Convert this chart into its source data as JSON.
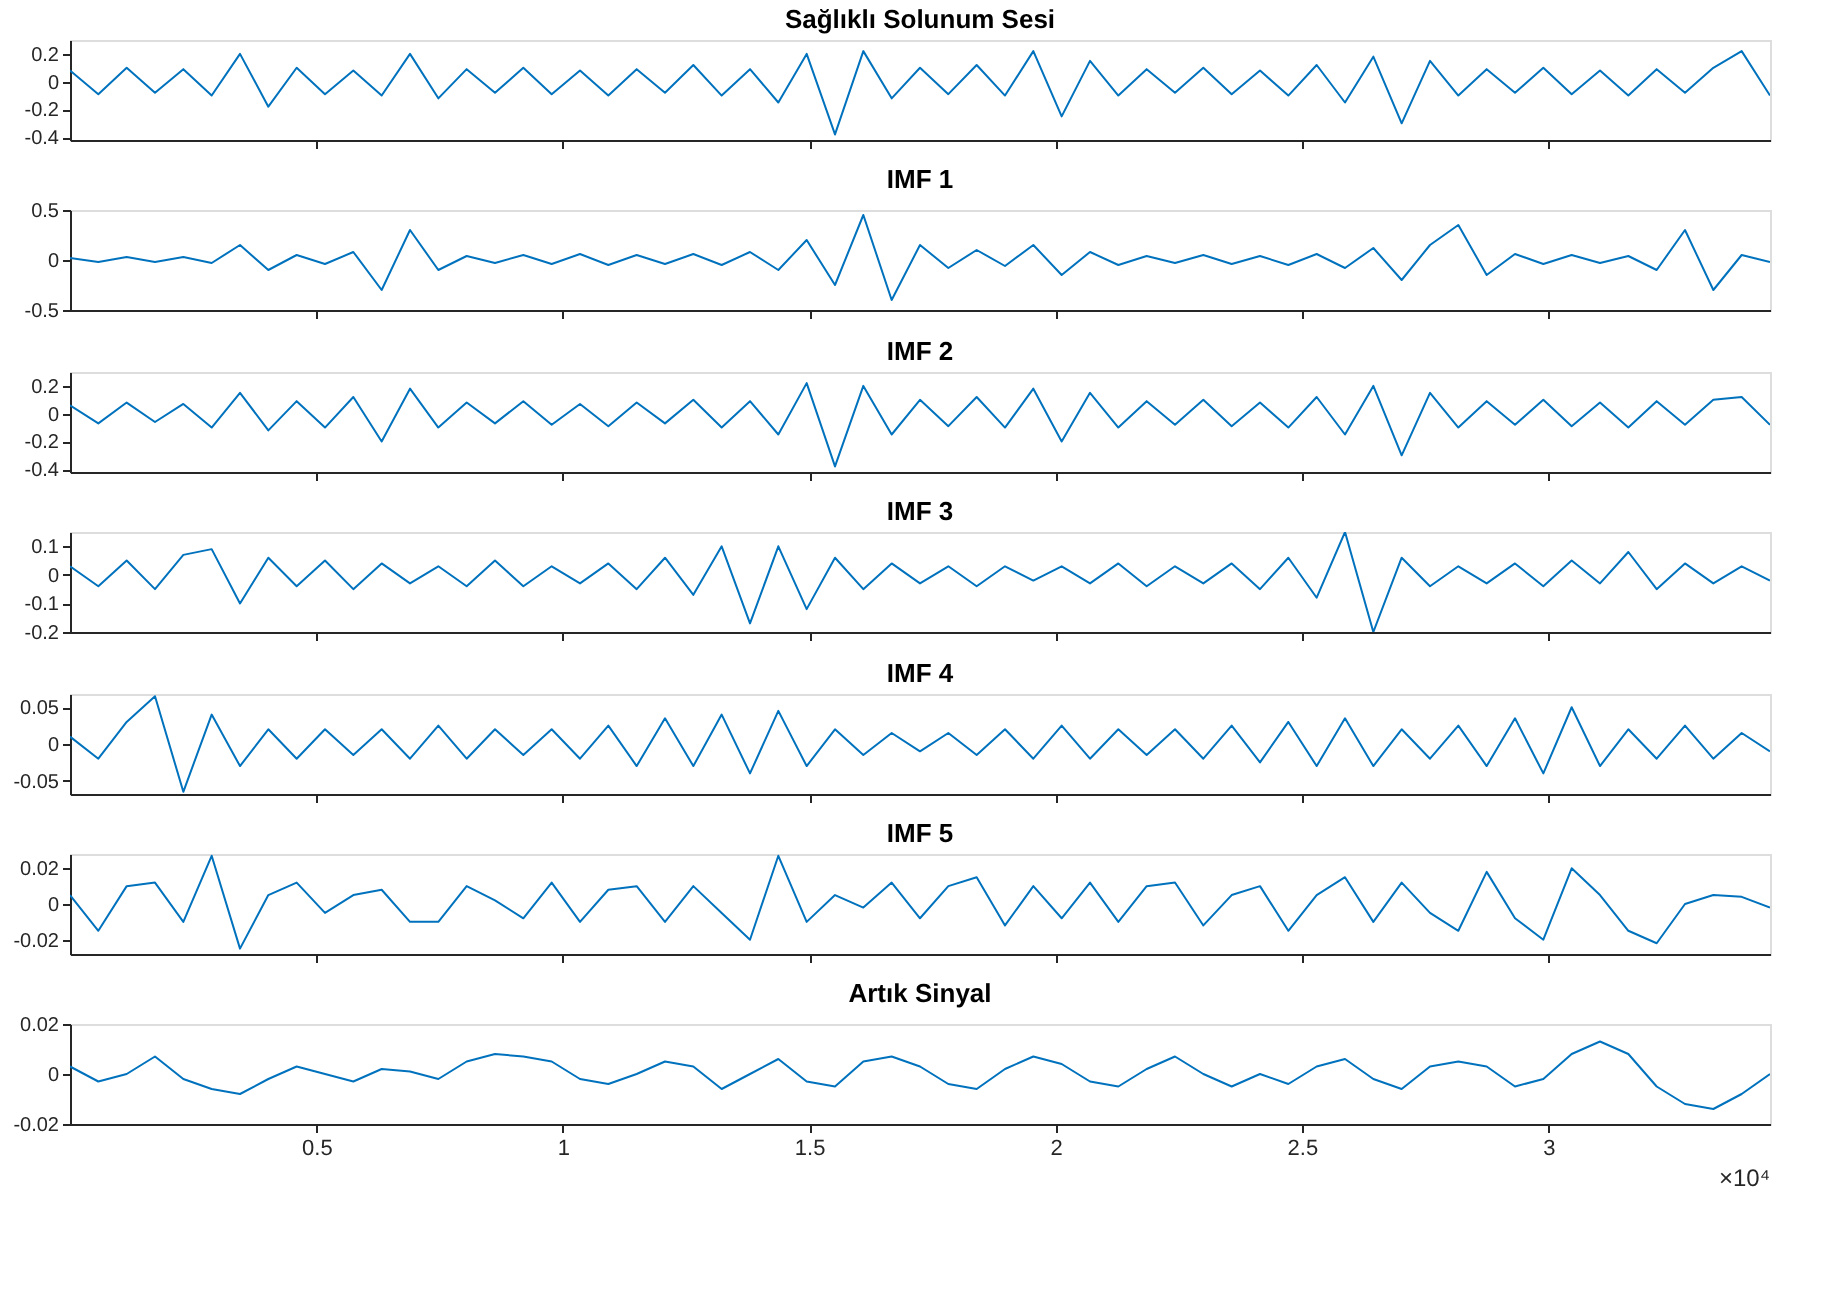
{
  "chart_data": [
    {
      "type": "line",
      "title": "Sağlıklı Solunum Sesi",
      "color": "#0072bd",
      "xlim": [
        0,
        3.45
      ],
      "ylim": [
        -0.42,
        0.3
      ],
      "yticks": [
        0.2,
        0,
        -0.2,
        -0.4
      ],
      "tick_labels": "y",
      "grid": false,
      "xticks": [
        0.5,
        1,
        1.5,
        2,
        2.5,
        3
      ],
      "x": [
        0,
        0.0575,
        0.115,
        0.1725,
        0.23,
        0.2875,
        0.345,
        0.4025,
        0.46,
        0.5175,
        0.575,
        0.6325,
        0.69,
        0.7475,
        0.805,
        0.8625,
        0.92,
        0.9775,
        1.035,
        1.0925,
        1.15,
        1.2075,
        1.265,
        1.3225,
        1.38,
        1.4375,
        1.495,
        1.5525,
        1.61,
        1.6675,
        1.725,
        1.7825,
        1.84,
        1.8975,
        1.955,
        2.0125,
        2.07,
        2.1275,
        2.185,
        2.2425,
        2.3,
        2.3575,
        2.415,
        2.4725,
        2.53,
        2.5875,
        2.645,
        2.7025,
        2.76,
        2.8175,
        2.875,
        2.9325,
        2.99,
        3.0475,
        3.105,
        3.1625,
        3.22,
        3.2775,
        3.335,
        3.3925,
        3.45
      ],
      "values": [
        0.08,
        -0.09,
        0.1,
        -0.08,
        0.09,
        -0.1,
        0.2,
        -0.18,
        0.1,
        -0.09,
        0.08,
        -0.1,
        0.2,
        -0.12,
        0.09,
        -0.08,
        0.1,
        -0.09,
        0.08,
        -0.1,
        0.09,
        -0.08,
        0.12,
        -0.1,
        0.09,
        -0.15,
        0.2,
        -0.38,
        0.22,
        -0.12,
        0.1,
        -0.09,
        0.12,
        -0.1,
        0.22,
        -0.25,
        0.15,
        -0.1,
        0.09,
        -0.08,
        0.1,
        -0.09,
        0.08,
        -0.1,
        0.12,
        -0.15,
        0.18,
        -0.3,
        0.15,
        -0.1,
        0.09,
        -0.08,
        0.1,
        -0.09,
        0.08,
        -0.1,
        0.09,
        -0.08,
        0.1,
        0.22,
        -0.1
      ]
    },
    {
      "type": "line",
      "title": "IMF 1",
      "color": "#0072bd",
      "xlim": [
        0,
        3.45
      ],
      "ylim": [
        -0.5,
        0.5
      ],
      "yticks": [
        0.5,
        0,
        -0.5
      ],
      "tick_labels": "y",
      "grid": false,
      "xticks": [
        0.5,
        1,
        1.5,
        2,
        2.5,
        3
      ],
      "x": [
        0,
        0.0575,
        0.115,
        0.1725,
        0.23,
        0.2875,
        0.345,
        0.4025,
        0.46,
        0.5175,
        0.575,
        0.6325,
        0.69,
        0.7475,
        0.805,
        0.8625,
        0.92,
        0.9775,
        1.035,
        1.0925,
        1.15,
        1.2075,
        1.265,
        1.3225,
        1.38,
        1.4375,
        1.495,
        1.5525,
        1.61,
        1.6675,
        1.725,
        1.7825,
        1.84,
        1.8975,
        1.955,
        2.0125,
        2.07,
        2.1275,
        2.185,
        2.2425,
        2.3,
        2.3575,
        2.415,
        2.4725,
        2.53,
        2.5875,
        2.645,
        2.7025,
        2.76,
        2.8175,
        2.875,
        2.9325,
        2.99,
        3.0475,
        3.105,
        3.1625,
        3.22,
        3.2775,
        3.335,
        3.3925,
        3.45
      ],
      "values": [
        0.02,
        -0.02,
        0.03,
        -0.02,
        0.03,
        -0.03,
        0.15,
        -0.1,
        0.05,
        -0.04,
        0.08,
        -0.3,
        0.3,
        -0.1,
        0.04,
        -0.03,
        0.05,
        -0.04,
        0.06,
        -0.05,
        0.05,
        -0.04,
        0.06,
        -0.05,
        0.08,
        -0.1,
        0.2,
        -0.25,
        0.45,
        -0.4,
        0.15,
        -0.08,
        0.1,
        -0.06,
        0.15,
        -0.15,
        0.08,
        -0.05,
        0.04,
        -0.03,
        0.05,
        -0.04,
        0.04,
        -0.05,
        0.06,
        -0.08,
        0.12,
        -0.2,
        0.15,
        0.35,
        -0.15,
        0.06,
        -0.04,
        0.05,
        -0.03,
        0.04,
        -0.1,
        0.3,
        -0.3,
        0.05,
        -0.02
      ]
    },
    {
      "type": "line",
      "title": "IMF 2",
      "color": "#0072bd",
      "xlim": [
        0,
        3.45
      ],
      "ylim": [
        -0.42,
        0.3
      ],
      "yticks": [
        0.2,
        0,
        -0.2,
        -0.4
      ],
      "tick_labels": "y",
      "grid": false,
      "xticks": [
        0.5,
        1,
        1.5,
        2,
        2.5,
        3
      ],
      "x": [
        0,
        0.0575,
        0.115,
        0.1725,
        0.23,
        0.2875,
        0.345,
        0.4025,
        0.46,
        0.5175,
        0.575,
        0.6325,
        0.69,
        0.7475,
        0.805,
        0.8625,
        0.92,
        0.9775,
        1.035,
        1.0925,
        1.15,
        1.2075,
        1.265,
        1.3225,
        1.38,
        1.4375,
        1.495,
        1.5525,
        1.61,
        1.6675,
        1.725,
        1.7825,
        1.84,
        1.8975,
        1.955,
        2.0125,
        2.07,
        2.1275,
        2.185,
        2.2425,
        2.3,
        2.3575,
        2.415,
        2.4725,
        2.53,
        2.5875,
        2.645,
        2.7025,
        2.76,
        2.8175,
        2.875,
        2.9325,
        2.99,
        3.0475,
        3.105,
        3.1625,
        3.22,
        3.2775,
        3.335,
        3.3925,
        3.45
      ],
      "values": [
        0.06,
        -0.07,
        0.08,
        -0.06,
        0.07,
        -0.1,
        0.15,
        -0.12,
        0.09,
        -0.1,
        0.12,
        -0.2,
        0.18,
        -0.1,
        0.08,
        -0.07,
        0.09,
        -0.08,
        0.07,
        -0.09,
        0.08,
        -0.07,
        0.1,
        -0.1,
        0.09,
        -0.15,
        0.22,
        -0.38,
        0.2,
        -0.15,
        0.1,
        -0.09,
        0.12,
        -0.1,
        0.18,
        -0.2,
        0.15,
        -0.1,
        0.09,
        -0.08,
        0.1,
        -0.09,
        0.08,
        -0.1,
        0.12,
        -0.15,
        0.2,
        -0.3,
        0.15,
        -0.1,
        0.09,
        -0.08,
        0.1,
        -0.09,
        0.08,
        -0.1,
        0.09,
        -0.08,
        0.1,
        0.12,
        -0.08
      ]
    },
    {
      "type": "line",
      "title": "IMF 3",
      "color": "#0072bd",
      "xlim": [
        0,
        3.45
      ],
      "ylim": [
        -0.2,
        0.15
      ],
      "yticks": [
        0.1,
        0,
        -0.1,
        -0.2
      ],
      "tick_labels": "y",
      "grid": false,
      "xticks": [
        0.5,
        1,
        1.5,
        2,
        2.5,
        3
      ],
      "x": [
        0,
        0.0575,
        0.115,
        0.1725,
        0.23,
        0.2875,
        0.345,
        0.4025,
        0.46,
        0.5175,
        0.575,
        0.6325,
        0.69,
        0.7475,
        0.805,
        0.8625,
        0.92,
        0.9775,
        1.035,
        1.0925,
        1.15,
        1.2075,
        1.265,
        1.3225,
        1.38,
        1.4375,
        1.495,
        1.5525,
        1.61,
        1.6675,
        1.725,
        1.7825,
        1.84,
        1.8975,
        1.955,
        2.0125,
        2.07,
        2.1275,
        2.185,
        2.2425,
        2.3,
        2.3575,
        2.415,
        2.4725,
        2.53,
        2.5875,
        2.645,
        2.7025,
        2.76,
        2.8175,
        2.875,
        2.9325,
        2.99,
        3.0475,
        3.105,
        3.1625,
        3.22,
        3.2775,
        3.335,
        3.3925,
        3.45
      ],
      "values": [
        0.03,
        -0.04,
        0.05,
        -0.05,
        0.07,
        0.09,
        -0.1,
        0.06,
        -0.04,
        0.05,
        -0.05,
        0.04,
        -0.03,
        0.03,
        -0.04,
        0.05,
        -0.04,
        0.03,
        -0.03,
        0.04,
        -0.05,
        0.06,
        -0.07,
        0.1,
        -0.17,
        0.1,
        -0.12,
        0.06,
        -0.05,
        0.04,
        -0.03,
        0.03,
        -0.04,
        0.03,
        -0.02,
        0.03,
        -0.03,
        0.04,
        -0.04,
        0.03,
        -0.03,
        0.04,
        -0.05,
        0.06,
        -0.08,
        0.15,
        -0.2,
        0.06,
        -0.04,
        0.03,
        -0.03,
        0.04,
        -0.04,
        0.05,
        -0.03,
        0.08,
        -0.05,
        0.04,
        -0.03,
        0.03,
        -0.02
      ]
    },
    {
      "type": "line",
      "title": "IMF 4",
      "color": "#0072bd",
      "xlim": [
        0,
        3.45
      ],
      "ylim": [
        -0.068,
        0.068
      ],
      "yticks": [
        0.05,
        0,
        -0.05
      ],
      "tick_labels": "y",
      "grid": false,
      "xticks": [
        0.5,
        1,
        1.5,
        2,
        2.5,
        3
      ],
      "x": [
        0,
        0.0575,
        0.115,
        0.1725,
        0.23,
        0.2875,
        0.345,
        0.4025,
        0.46,
        0.5175,
        0.575,
        0.6325,
        0.69,
        0.7475,
        0.805,
        0.8625,
        0.92,
        0.9775,
        1.035,
        1.0925,
        1.15,
        1.2075,
        1.265,
        1.3225,
        1.38,
        1.4375,
        1.495,
        1.5525,
        1.61,
        1.6675,
        1.725,
        1.7825,
        1.84,
        1.8975,
        1.955,
        2.0125,
        2.07,
        2.1275,
        2.185,
        2.2425,
        2.3,
        2.3575,
        2.415,
        2.4725,
        2.53,
        2.5875,
        2.645,
        2.7025,
        2.76,
        2.8175,
        2.875,
        2.9325,
        2.99,
        3.0475,
        3.105,
        3.1625,
        3.22,
        3.2775,
        3.335,
        3.3925,
        3.45
      ],
      "values": [
        0.01,
        -0.02,
        0.03,
        0.065,
        -0.065,
        0.04,
        -0.03,
        0.02,
        -0.02,
        0.02,
        -0.015,
        0.02,
        -0.02,
        0.025,
        -0.02,
        0.02,
        -0.015,
        0.02,
        -0.02,
        0.025,
        -0.03,
        0.035,
        -0.03,
        0.04,
        -0.04,
        0.045,
        -0.03,
        0.02,
        -0.015,
        0.015,
        -0.01,
        0.015,
        -0.015,
        0.02,
        -0.02,
        0.025,
        -0.02,
        0.02,
        -0.015,
        0.02,
        -0.02,
        0.025,
        -0.025,
        0.03,
        -0.03,
        0.035,
        -0.03,
        0.02,
        -0.02,
        0.025,
        -0.03,
        0.035,
        -0.04,
        0.05,
        -0.03,
        0.02,
        -0.02,
        0.025,
        -0.02,
        0.015,
        -0.01
      ]
    },
    {
      "type": "line",
      "title": "IMF 5",
      "color": "#0072bd",
      "xlim": [
        0,
        3.45
      ],
      "ylim": [
        -0.028,
        0.028
      ],
      "yticks": [
        0.02,
        0,
        -0.02
      ],
      "tick_labels": "y",
      "grid": false,
      "xticks": [
        0.5,
        1,
        1.5,
        2,
        2.5,
        3
      ],
      "x": [
        0,
        0.0575,
        0.115,
        0.1725,
        0.23,
        0.2875,
        0.345,
        0.4025,
        0.46,
        0.5175,
        0.575,
        0.6325,
        0.69,
        0.7475,
        0.805,
        0.8625,
        0.92,
        0.9775,
        1.035,
        1.0925,
        1.15,
        1.2075,
        1.265,
        1.3225,
        1.38,
        1.4375,
        1.495,
        1.5525,
        1.61,
        1.6675,
        1.725,
        1.7825,
        1.84,
        1.8975,
        1.955,
        2.0125,
        2.07,
        2.1275,
        2.185,
        2.2425,
        2.3,
        2.3575,
        2.415,
        2.4725,
        2.53,
        2.5875,
        2.645,
        2.7025,
        2.76,
        2.8175,
        2.875,
        2.9325,
        2.99,
        3.0475,
        3.105,
        3.1625,
        3.22,
        3.2775,
        3.335,
        3.3925,
        3.45
      ],
      "values": [
        0.005,
        -0.015,
        0.01,
        0.012,
        -0.01,
        0.027,
        -0.025,
        0.005,
        0.012,
        -0.005,
        0.005,
        0.008,
        -0.01,
        -0.01,
        0.01,
        0.002,
        -0.008,
        0.012,
        -0.01,
        0.008,
        0.01,
        -0.01,
        0.01,
        -0.005,
        -0.02,
        0.027,
        -0.01,
        0.005,
        -0.002,
        0.012,
        -0.008,
        0.01,
        0.015,
        -0.012,
        0.01,
        -0.008,
        0.012,
        -0.01,
        0.01,
        0.012,
        -0.012,
        0.005,
        0.01,
        -0.015,
        0.005,
        0.015,
        -0.01,
        0.012,
        -0.005,
        -0.015,
        0.018,
        -0.008,
        -0.02,
        0.02,
        0.005,
        -0.015,
        -0.022,
        0.0,
        0.005,
        0.004,
        -0.002
      ]
    },
    {
      "type": "line",
      "title": "Artık Sinyal",
      "color": "#0072bd",
      "xlim": [
        0,
        3.45
      ],
      "ylim": [
        -0.02,
        0.02
      ],
      "yticks": [
        0.02,
        0,
        -0.02
      ],
      "grid": false,
      "annotations": [
        "×10⁴"
      ],
      "xticks": [
        0.5,
        1,
        1.5,
        2,
        2.5,
        3
      ],
      "x": [
        0,
        0.0575,
        0.115,
        0.1725,
        0.23,
        0.2875,
        0.345,
        0.4025,
        0.46,
        0.5175,
        0.575,
        0.6325,
        0.69,
        0.7475,
        0.805,
        0.8625,
        0.92,
        0.9775,
        1.035,
        1.0925,
        1.15,
        1.2075,
        1.265,
        1.3225,
        1.38,
        1.4375,
        1.495,
        1.5525,
        1.61,
        1.6675,
        1.725,
        1.7825,
        1.84,
        1.8975,
        1.955,
        2.0125,
        2.07,
        2.1275,
        2.185,
        2.2425,
        2.3,
        2.3575,
        2.415,
        2.4725,
        2.53,
        2.5875,
        2.645,
        2.7025,
        2.76,
        2.8175,
        2.875,
        2.9325,
        2.99,
        3.0475,
        3.105,
        3.1625,
        3.22,
        3.2775,
        3.335,
        3.3925,
        3.45
      ],
      "values": [
        0.003,
        -0.003,
        0.0,
        0.007,
        -0.002,
        -0.006,
        -0.008,
        -0.002,
        0.003,
        0.0,
        -0.003,
        0.002,
        0.001,
        -0.002,
        0.005,
        0.008,
        0.007,
        0.005,
        -0.002,
        -0.004,
        0.0,
        0.005,
        0.003,
        -0.006,
        0.0,
        0.006,
        -0.003,
        -0.005,
        0.005,
        0.007,
        0.003,
        -0.004,
        -0.006,
        0.002,
        0.007,
        0.004,
        -0.003,
        -0.005,
        0.002,
        0.007,
        0.0,
        -0.005,
        0.0,
        -0.004,
        0.003,
        0.006,
        -0.002,
        -0.006,
        0.003,
        0.005,
        0.003,
        -0.005,
        -0.002,
        0.008,
        0.013,
        0.008,
        -0.005,
        -0.012,
        -0.014,
        -0.008,
        0.0
      ]
    }
  ]
}
